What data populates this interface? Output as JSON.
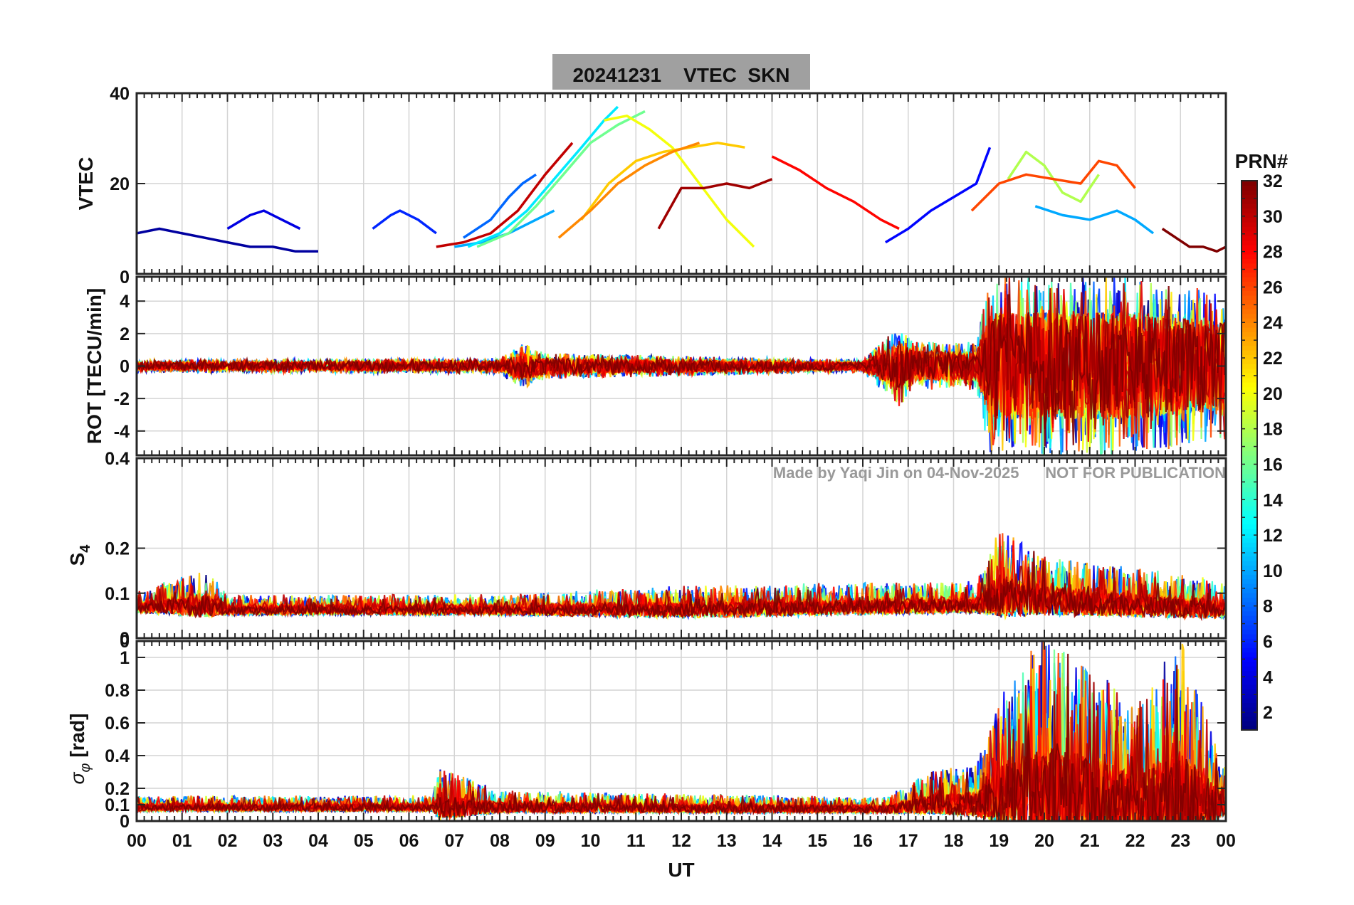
{
  "chart_data": [
    {
      "id": "vtec",
      "type": "line",
      "title": "20241231    VTEC  SKN",
      "ylabel": "VTEC",
      "xlabel": "",
      "xlim": [
        0,
        24
      ],
      "ylim": [
        0,
        40
      ],
      "yticks": [
        0,
        20,
        40
      ],
      "ytick_labels": [
        "",
        "20",
        "40"
      ],
      "grid": true,
      "description": "Vertical TEC per satellite pass, colored by PRN",
      "series": [
        {
          "name": "PRN 2",
          "prn": 2,
          "x": [
            0.0,
            0.5,
            1.0,
            1.5,
            2.0,
            2.5,
            3.0,
            3.5,
            4.0
          ],
          "values": [
            9,
            10,
            9,
            8,
            7,
            6,
            6,
            5,
            5
          ]
        },
        {
          "name": "PRN 4",
          "prn": 4,
          "x": [
            2.0,
            2.5,
            2.8,
            3.2,
            3.6
          ],
          "values": [
            10,
            13,
            14,
            12,
            10
          ]
        },
        {
          "name": "PRN 6",
          "prn": 6,
          "x": [
            5.2,
            5.6,
            5.8,
            6.2,
            6.6
          ],
          "values": [
            10,
            13,
            14,
            12,
            9
          ]
        },
        {
          "name": "PRN 8",
          "prn": 8,
          "x": [
            7.2,
            7.8,
            8.2,
            8.5,
            8.8
          ],
          "values": [
            8,
            12,
            17,
            20,
            22
          ]
        },
        {
          "name": "PRN 10",
          "prn": 10,
          "x": [
            7.0,
            7.6,
            8.2,
            8.8,
            9.2
          ],
          "values": [
            6,
            7,
            9,
            12,
            14
          ]
        },
        {
          "name": "PRN 12",
          "prn": 12,
          "x": [
            7.3,
            8.0,
            8.6,
            9.2,
            9.8,
            10.3,
            10.6
          ],
          "values": [
            6,
            9,
            14,
            21,
            28,
            34,
            37
          ]
        },
        {
          "name": "PRN 16",
          "prn": 16,
          "x": [
            7.5,
            8.2,
            8.8,
            9.4,
            10.0,
            10.6,
            11.2
          ],
          "values": [
            6,
            9,
            15,
            22,
            29,
            33,
            36
          ]
        },
        {
          "name": "PRN 20",
          "prn": 20,
          "x": [
            10.3,
            10.8,
            11.3,
            11.8,
            12.4,
            13.0,
            13.6
          ],
          "values": [
            34,
            35,
            32,
            28,
            20,
            12,
            6
          ]
        },
        {
          "name": "PRN 22",
          "prn": 22,
          "x": [
            9.8,
            10.4,
            11.0,
            11.6,
            12.2,
            12.8,
            13.4
          ],
          "values": [
            12,
            20,
            25,
            27,
            28,
            29,
            28
          ]
        },
        {
          "name": "PRN 24",
          "prn": 24,
          "x": [
            9.3,
            10.0,
            10.6,
            11.2,
            11.8,
            12.4
          ],
          "values": [
            8,
            14,
            20,
            24,
            27,
            29
          ]
        },
        {
          "name": "PRN 28",
          "prn": 28,
          "x": [
            14.0,
            14.6,
            15.2,
            15.8,
            16.4,
            16.8
          ],
          "values": [
            26,
            23,
            19,
            16,
            12,
            10
          ]
        },
        {
          "name": "PRN 30",
          "prn": 30,
          "x": [
            6.6,
            7.2,
            7.8,
            8.4,
            9.0,
            9.6
          ],
          "values": [
            6,
            7,
            9,
            14,
            22,
            29
          ]
        },
        {
          "name": "PRN 31",
          "prn": 31,
          "x": [
            11.5,
            12.0,
            12.5,
            13.0,
            13.5,
            14.0
          ],
          "values": [
            10,
            19,
            19,
            20,
            19,
            21
          ]
        },
        {
          "name": "PRN 5",
          "prn": 5,
          "x": [
            16.5,
            17.0,
            17.5,
            18.0,
            18.5,
            18.8
          ],
          "values": [
            7,
            10,
            14,
            17,
            20,
            28
          ]
        },
        {
          "name": "PRN 18",
          "prn": 18,
          "x": [
            19.2,
            19.6,
            20.0,
            20.4,
            20.8,
            21.2
          ],
          "values": [
            21,
            27,
            24,
            18,
            16,
            22
          ]
        },
        {
          "name": "PRN 26",
          "prn": 26,
          "x": [
            18.4,
            19.0,
            19.6,
            20.2,
            20.8,
            21.2,
            21.6,
            22.0
          ],
          "values": [
            14,
            20,
            22,
            21,
            20,
            25,
            24,
            19
          ]
        },
        {
          "name": "PRN 10b",
          "prn": 10,
          "x": [
            19.8,
            20.4,
            21.0,
            21.6,
            22.0,
            22.4
          ],
          "values": [
            15,
            13,
            12,
            14,
            12,
            9
          ]
        },
        {
          "name": "PRN 32",
          "prn": 32,
          "x": [
            22.6,
            22.9,
            23.2,
            23.5,
            23.8,
            24.0
          ],
          "values": [
            10,
            8,
            6,
            6,
            5,
            6
          ]
        }
      ]
    },
    {
      "id": "rot",
      "type": "line",
      "title": "",
      "ylabel": "ROT [TECU/min]",
      "xlim": [
        0,
        24
      ],
      "ylim": [
        -5.5,
        5.5
      ],
      "yticks": [
        -4,
        -2,
        0,
        2,
        4
      ],
      "ytick_labels": [
        "-4",
        "-2",
        "0",
        "2",
        "4"
      ],
      "top_label": "0",
      "grid": true,
      "description": "Rate of TEC, quiet (~±0.5) before 17 UT, strongly fluctuating (±5) after 18.7 UT",
      "envelope": {
        "x": [
          0,
          8,
          8.5,
          9,
          16,
          16.8,
          17.2,
          18.5,
          18.8,
          22,
          24
        ],
        "amplitude": [
          0.4,
          0.5,
          1.5,
          0.8,
          0.4,
          2.5,
          1.5,
          1.5,
          5.5,
          5.5,
          4.5
        ]
      }
    },
    {
      "id": "s4",
      "type": "line",
      "title": "",
      "ylabel": "S4",
      "xlim": [
        0,
        24
      ],
      "ylim": [
        0,
        0.4
      ],
      "yticks": [
        0,
        0.1,
        0.2
      ],
      "ytick_labels": [
        "0",
        "0.1",
        "0.2"
      ],
      "top_label": "0.4",
      "grid": true,
      "annotation": "Made by Yaqi Jin on 04-Nov-2025      NOT FOR PUBLICATION",
      "description": "Amplitude scintillation index, baseline ~0.06, peaks ~0.24 near 19 UT",
      "envelope": {
        "x": [
          0,
          1.5,
          2,
          8,
          12,
          18.5,
          19,
          20,
          24
        ],
        "baseline": [
          0.065,
          0.07,
          0.06,
          0.06,
          0.06,
          0.07,
          0.09,
          0.08,
          0.06
        ],
        "amplitude": [
          0.03,
          0.08,
          0.03,
          0.03,
          0.05,
          0.05,
          0.15,
          0.1,
          0.06
        ]
      }
    },
    {
      "id": "sigphi",
      "type": "line",
      "title": "",
      "ylabel": "σφ [rad]",
      "xlabel": "UT",
      "xlim": [
        0,
        24
      ],
      "ylim": [
        0,
        1.1
      ],
      "yticks": [
        0,
        0.1,
        0.2,
        0.4,
        0.6,
        0.8,
        1.0
      ],
      "ytick_labels": [
        "0",
        "0.1",
        "0.2",
        "0.4",
        "0.6",
        "0.8",
        "1"
      ],
      "top_label": "0",
      "xticks": [
        0,
        1,
        2,
        3,
        4,
        5,
        6,
        7,
        8,
        9,
        10,
        11,
        12,
        13,
        14,
        15,
        16,
        17,
        18,
        19,
        20,
        21,
        22,
        23,
        24
      ],
      "xtick_labels": [
        "00",
        "01",
        "02",
        "03",
        "04",
        "05",
        "06",
        "07",
        "08",
        "09",
        "10",
        "11",
        "12",
        "13",
        "14",
        "15",
        "16",
        "17",
        "18",
        "19",
        "20",
        "21",
        "22",
        "23",
        "00"
      ],
      "grid": true,
      "description": "Phase scintillation, baseline ~0.08 rad, strong bursts up to 1.1 rad between 18.7 and 23.7 UT",
      "envelope": {
        "x": [
          0,
          6.5,
          6.7,
          8,
          16.5,
          17.5,
          18.5,
          19,
          20,
          21,
          22,
          23,
          24
        ],
        "baseline": [
          0.08,
          0.08,
          0.08,
          0.08,
          0.07,
          0.1,
          0.1,
          0.15,
          0.15,
          0.15,
          0.12,
          0.12,
          0.1
        ],
        "amplitude": [
          0.07,
          0.07,
          0.25,
          0.1,
          0.07,
          0.2,
          0.25,
          0.6,
          1.0,
          0.8,
          0.6,
          1.0,
          0.2
        ]
      }
    }
  ],
  "colorbar": {
    "label": "PRN#",
    "min": 1,
    "max": 32,
    "ticks": [
      2,
      4,
      6,
      8,
      10,
      12,
      14,
      16,
      18,
      20,
      22,
      24,
      26,
      28,
      30,
      32
    ],
    "colormap": "jet"
  },
  "colors": {
    "title_background": "#a0a0a0",
    "axis": "#262626",
    "grid": "#d0d0d0",
    "annotation": "#999999"
  }
}
